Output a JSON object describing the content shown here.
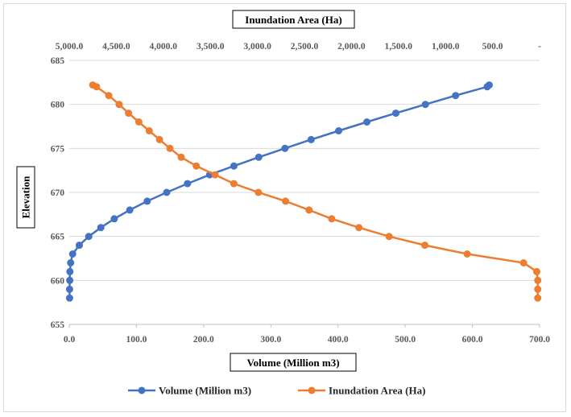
{
  "chart_data": {
    "type": "scatter",
    "title": "",
    "xlabel": "Volume (Million m3)",
    "ylabel": "Elevation",
    "x2label": "Inundation Area (Ha)",
    "xlim": [
      0,
      700
    ],
    "x2lim": [
      5000,
      0
    ],
    "ylim": [
      655,
      685
    ],
    "x_ticks": [
      "0.0",
      "100.0",
      "200.0",
      "300.0",
      "400.0",
      "500.0",
      "600.0",
      "700.0"
    ],
    "x2_ticks": [
      "5,000.0",
      "4,500.0",
      "4,000.0",
      "3,500.0",
      "3,000.0",
      "2,500.0",
      "2,000.0",
      "1,500.0",
      "1,000.0",
      "500.0",
      "-"
    ],
    "y_ticks": [
      "655",
      "660",
      "665",
      "670",
      "675",
      "680",
      "685"
    ],
    "grid": "horizontal",
    "legend": "bottom",
    "series": [
      {
        "name": "Volume (Million m3)",
        "axis": "bottom",
        "color": "#4472c4",
        "points": [
          [
            0.5,
            658
          ],
          [
            0.5,
            659
          ],
          [
            0.7,
            660
          ],
          [
            1,
            661
          ],
          [
            2,
            662
          ],
          [
            5,
            663
          ],
          [
            15,
            664
          ],
          [
            29,
            665
          ],
          [
            47,
            666
          ],
          [
            67,
            667
          ],
          [
            90,
            668
          ],
          [
            116,
            669
          ],
          [
            145,
            670
          ],
          [
            176,
            671
          ],
          [
            209,
            672
          ],
          [
            245,
            673
          ],
          [
            282,
            674
          ],
          [
            321,
            675
          ],
          [
            360,
            676
          ],
          [
            401,
            677
          ],
          [
            443,
            678
          ],
          [
            486,
            679
          ],
          [
            530,
            680
          ],
          [
            575,
            681
          ],
          [
            622,
            682
          ],
          [
            625,
            682.2
          ]
        ]
      },
      {
        "name": "Inundation Area (Ha)",
        "axis": "top",
        "color": "#ed7d31",
        "points": [
          [
            20,
            658
          ],
          [
            20,
            659
          ],
          [
            20,
            660
          ],
          [
            30,
            661
          ],
          [
            170,
            662
          ],
          [
            770,
            663
          ],
          [
            1220,
            664
          ],
          [
            1600,
            665
          ],
          [
            1920,
            666
          ],
          [
            2210,
            667
          ],
          [
            2450,
            668
          ],
          [
            2700,
            669
          ],
          [
            2990,
            670
          ],
          [
            3250,
            671
          ],
          [
            3450,
            672
          ],
          [
            3650,
            673
          ],
          [
            3810,
            674
          ],
          [
            3930,
            675
          ],
          [
            4040,
            676
          ],
          [
            4150,
            677
          ],
          [
            4260,
            678
          ],
          [
            4370,
            679
          ],
          [
            4470,
            680
          ],
          [
            4580,
            681
          ],
          [
            4710,
            682
          ],
          [
            4750,
            682.2
          ]
        ]
      }
    ]
  }
}
